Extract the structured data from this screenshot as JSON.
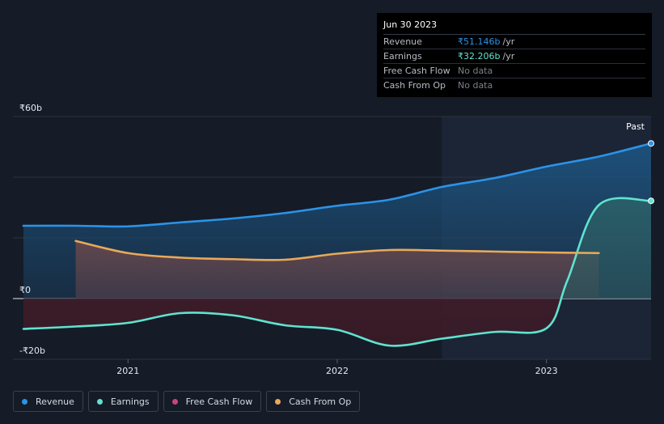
{
  "tooltip": {
    "date": "Jun 30 2023",
    "rows": [
      {
        "label": "Revenue",
        "value": "₹51.146b",
        "unit": "/yr"
      },
      {
        "label": "Earnings",
        "value": "₹32.206b",
        "unit": "/yr"
      },
      {
        "label": "Free Cash Flow",
        "value": "No data",
        "unit": ""
      },
      {
        "label": "Cash From Op",
        "value": "No data",
        "unit": ""
      }
    ]
  },
  "past_label": "Past",
  "legend": [
    {
      "label": "Revenue",
      "color": "#2b93e8"
    },
    {
      "label": "Earnings",
      "color": "#5fe3cf"
    },
    {
      "label": "Free Cash Flow",
      "color": "#c9457e"
    },
    {
      "label": "Cash From Op",
      "color": "#e8a95a"
    }
  ],
  "chart_data": {
    "type": "line",
    "x_range": [
      2020.45,
      2023.5
    ],
    "ylim": [
      -20,
      60
    ],
    "y_ticks": [
      {
        "value": 60,
        "label": "₹60b"
      },
      {
        "value": 0,
        "label": "₹0"
      },
      {
        "value": -20,
        "label": "-₹20b"
      }
    ],
    "x_ticks": [
      {
        "value": 2021,
        "label": "2021"
      },
      {
        "value": 2022,
        "label": "2022"
      },
      {
        "value": 2023,
        "label": "2023"
      }
    ],
    "past_start": 2022.5,
    "series": [
      {
        "name": "Revenue",
        "color": "#2b93e8",
        "x": [
          2020.5,
          2020.75,
          2021.0,
          2021.25,
          2021.5,
          2021.75,
          2022.0,
          2022.25,
          2022.5,
          2022.75,
          2023.0,
          2023.25,
          2023.5
        ],
        "y": [
          24.0,
          24.0,
          23.8,
          25.1,
          26.4,
          28.2,
          30.6,
          32.6,
          36.8,
          39.7,
          43.5,
          46.8,
          51.146
        ]
      },
      {
        "name": "Earnings",
        "color": "#5fe3cf",
        "x": [
          2020.5,
          2020.75,
          2021.0,
          2021.25,
          2021.5,
          2021.75,
          2022.0,
          2022.25,
          2022.5,
          2022.75,
          2023.0,
          2023.1,
          2023.25,
          2023.5
        ],
        "y": [
          -10.0,
          -9.2,
          -8.0,
          -4.8,
          -5.5,
          -8.8,
          -10.3,
          -15.5,
          -13.2,
          -11.0,
          -9.8,
          6.0,
          30.8,
          32.206
        ]
      },
      {
        "name": "Cash From Op",
        "color": "#e8a95a",
        "x": [
          2020.75,
          2021.0,
          2021.25,
          2021.5,
          2021.75,
          2022.0,
          2022.25,
          2022.5,
          2022.75,
          2023.0,
          2023.25
        ],
        "y": [
          19.0,
          15.0,
          13.5,
          13.0,
          12.8,
          14.8,
          16.0,
          15.8,
          15.5,
          15.2,
          15.0
        ]
      }
    ]
  }
}
